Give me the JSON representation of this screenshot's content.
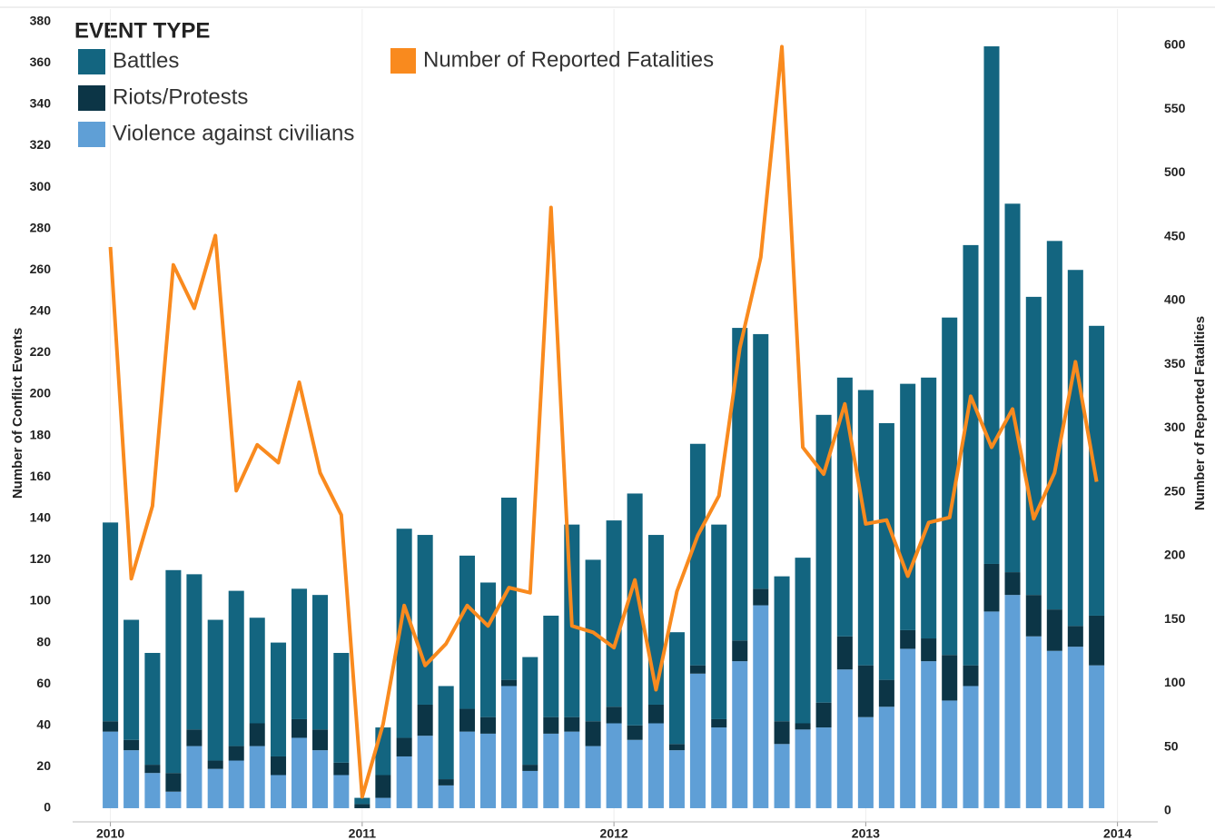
{
  "chart_data": {
    "type": "bar",
    "legend_title": "EVENT TYPE",
    "ylabel": "Number of Conflict Events",
    "y2label": "Number of Reported Fatalities",
    "x": [
      2010.0,
      2010.083,
      2010.167,
      2010.25,
      2010.333,
      2010.417,
      2010.5,
      2010.583,
      2010.667,
      2010.75,
      2010.833,
      2010.917,
      2011.0,
      2011.083,
      2011.167,
      2011.25,
      2011.333,
      2011.417,
      2011.5,
      2011.583,
      2011.667,
      2011.75,
      2011.833,
      2011.917,
      2012.0,
      2012.083,
      2012.167,
      2012.25,
      2012.333,
      2012.417,
      2012.5,
      2012.583,
      2012.667,
      2012.75,
      2012.833,
      2012.917,
      2013.0,
      2013.083,
      2013.167,
      2013.25,
      2013.333,
      2013.417,
      2013.5,
      2013.583,
      2013.667,
      2013.75,
      2013.833,
      2013.917
    ],
    "xlim": [
      2009.85,
      2014.16
    ],
    "xticks": [
      2010,
      2011,
      2012,
      2013,
      2014
    ],
    "xgrid": true,
    "ylim": [
      -4.4,
      386
    ],
    "yticks": [
      0,
      20,
      40,
      60,
      80,
      100,
      120,
      140,
      160,
      180,
      200,
      220,
      240,
      260,
      280,
      300,
      320,
      340,
      360,
      380
    ],
    "y2lim": [
      -5,
      628.5
    ],
    "y2ticks": [
      0,
      50,
      100,
      150,
      200,
      250,
      300,
      350,
      400,
      450,
      500,
      550,
      600
    ],
    "stacked": true,
    "series": [
      {
        "name": "Battles",
        "type": "bar",
        "color": "#136580",
        "values": [
          96,
          58,
          54,
          98,
          75,
          68,
          75,
          51,
          55,
          63,
          65,
          53,
          3,
          23,
          101,
          82,
          45,
          74,
          65,
          88,
          52,
          49,
          93,
          78,
          90,
          112,
          82,
          54,
          107,
          94,
          151,
          123,
          70,
          80,
          139,
          125,
          133,
          124,
          119,
          126,
          163,
          203,
          250,
          178,
          144,
          178,
          172,
          140
        ]
      },
      {
        "name": "Riots/Protests",
        "type": "bar",
        "color": "#0c3546",
        "values": [
          5,
          5,
          4,
          9,
          8,
          4,
          7,
          11,
          9,
          9,
          10,
          6,
          2,
          11,
          9,
          15,
          3,
          11,
          8,
          3,
          3,
          8,
          7,
          12,
          8,
          7,
          9,
          3,
          4,
          4,
          10,
          8,
          11,
          3,
          12,
          16,
          25,
          13,
          9,
          11,
          22,
          10,
          23,
          11,
          20,
          20,
          10,
          24
        ]
      },
      {
        "name": "Violence against civilians",
        "type": "bar",
        "color": "#5f9fd6",
        "values": [
          37,
          28,
          17,
          8,
          30,
          19,
          23,
          30,
          16,
          34,
          28,
          16,
          0,
          5,
          25,
          35,
          11,
          37,
          36,
          59,
          18,
          36,
          37,
          30,
          41,
          33,
          41,
          28,
          65,
          39,
          71,
          98,
          31,
          38,
          39,
          67,
          44,
          49,
          77,
          71,
          52,
          59,
          95,
          103,
          83,
          76,
          78,
          69
        ]
      },
      {
        "name": "Number of Reported Fatalities",
        "type": "line",
        "axis": "y2",
        "color": "#f98a1e",
        "values": [
          442,
          182,
          239,
          428,
          394,
          451,
          251,
          287,
          273,
          336,
          265,
          232,
          11,
          68,
          161,
          114,
          131,
          161,
          145,
          175,
          171,
          473,
          145,
          140,
          128,
          181,
          95,
          172,
          216,
          247,
          363,
          434,
          599,
          285,
          264,
          319,
          225,
          228,
          184,
          226,
          230,
          325,
          285,
          315,
          229,
          265,
          352,
          258
        ]
      }
    ]
  }
}
